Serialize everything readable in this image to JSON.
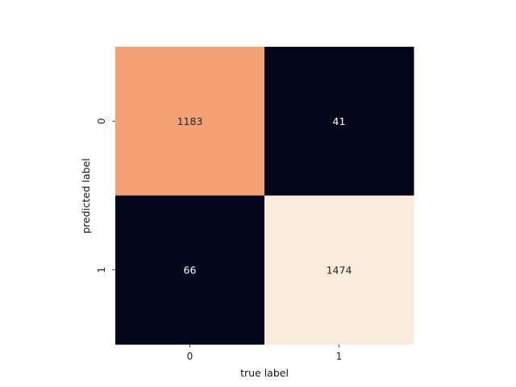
{
  "chart_data": {
    "type": "heatmap",
    "title": "",
    "xlabel": "true label",
    "ylabel": "predicted label",
    "x_categories": [
      "0",
      "1"
    ],
    "y_categories": [
      "0",
      "1"
    ],
    "values": [
      [
        1183,
        41
      ],
      [
        66,
        1474
      ]
    ],
    "colorbar": false,
    "grid": false,
    "colormap": "rocket",
    "cell_colors": [
      [
        "#f4a075",
        "#03051a"
      ],
      [
        "#03051a",
        "#faebdd"
      ]
    ],
    "cell_text_colors": [
      [
        "#262626",
        "#ffffff"
      ],
      [
        "#ffffff",
        "#262626"
      ]
    ]
  }
}
